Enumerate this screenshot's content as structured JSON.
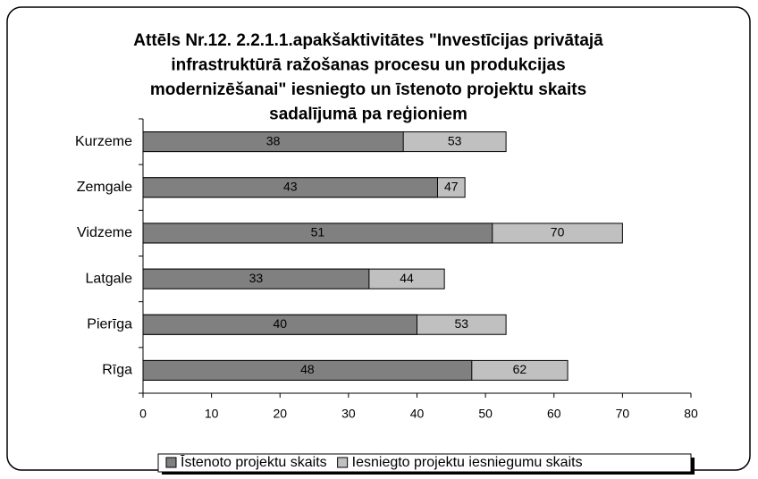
{
  "chart_data": {
    "type": "bar",
    "orientation": "horizontal",
    "bar_mode": "overlap",
    "title": [
      "Attēls Nr.12. 2.2.1.1.apakšaktivitātes \"Investīcijas privātajā",
      "infrastruktūrā ražošanas procesu un produkcijas",
      "modernizēšanai\" iesniegto un īstenoto projektu skaits",
      "sadalījumā pa reģioniem"
    ],
    "categories": [
      "Kurzeme",
      "Zemgale",
      "Vidzeme",
      "Latgale",
      "Pierīga",
      "Rīga"
    ],
    "series": [
      {
        "name": "Īstenoto projektu skaits",
        "color": "#808080",
        "values": [
          38,
          43,
          51,
          33,
          40,
          48
        ]
      },
      {
        "name": "Iesniegto projektu iesniegumu skaits",
        "color": "#c0c0c0",
        "values": [
          53,
          47,
          70,
          44,
          53,
          62
        ]
      }
    ],
    "xlim": [
      0,
      80
    ],
    "xticks": [
      0,
      10,
      20,
      30,
      40,
      50,
      60,
      70,
      80
    ],
    "grid": false,
    "legend": "bottom"
  }
}
